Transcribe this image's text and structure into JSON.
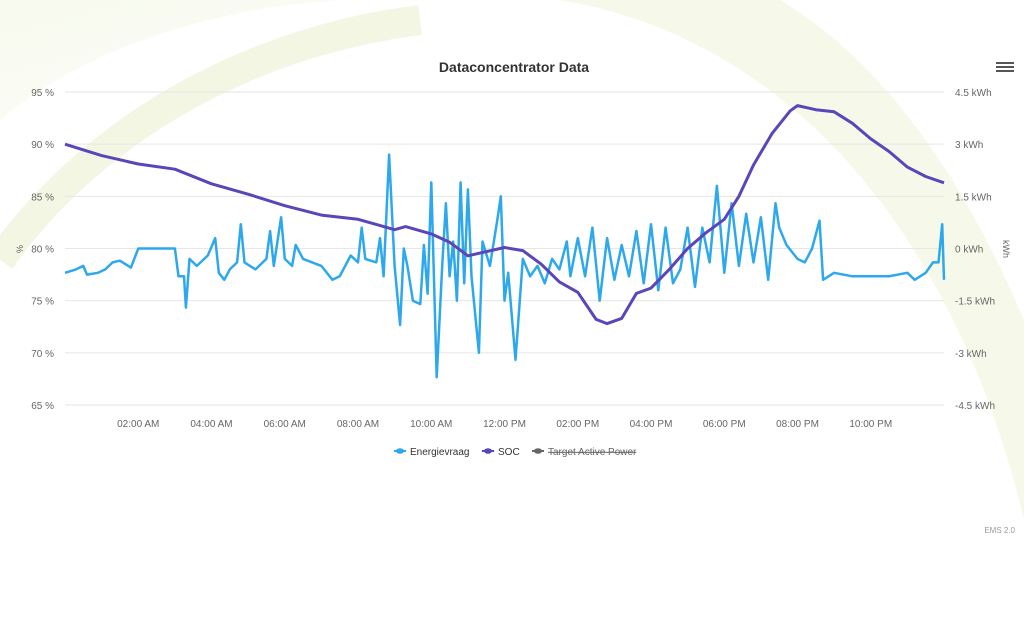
{
  "chart_data": {
    "type": "line",
    "title": "Dataconcentrator Data",
    "xlabel": "",
    "ylabel_left": "%",
    "ylabel_right": "kWh",
    "xlim_hours": [
      0,
      24
    ],
    "ylim_left": [
      65,
      95
    ],
    "ylim_right": [
      -4.5,
      4.5
    ],
    "x_ticks": [
      {
        "h": 2,
        "label": "02:00 AM"
      },
      {
        "h": 4,
        "label": "04:00 AM"
      },
      {
        "h": 6,
        "label": "06:00 AM"
      },
      {
        "h": 8,
        "label": "08:00 AM"
      },
      {
        "h": 10,
        "label": "10:00 AM"
      },
      {
        "h": 12,
        "label": "12:00 PM"
      },
      {
        "h": 14,
        "label": "02:00 PM"
      },
      {
        "h": 16,
        "label": "04:00 PM"
      },
      {
        "h": 18,
        "label": "06:00 PM"
      },
      {
        "h": 20,
        "label": "08:00 PM"
      },
      {
        "h": 22,
        "label": "10:00 PM"
      }
    ],
    "y_left_ticks": [
      "65 %",
      "70 %",
      "75 %",
      "80 %",
      "85 %",
      "90 %",
      "95 %"
    ],
    "y_right_ticks": [
      "-4.5 kWh",
      "-3 kWh",
      "-1.5 kWh",
      "0 kWh",
      "1.5 kWh",
      "3 kWh",
      "4.5 kWh"
    ],
    "grid": true,
    "legend_position": "bottom-center",
    "series": [
      {
        "name": "Energievraag",
        "axis": "right",
        "color": "#2ea8ec",
        "hidden": false,
        "x": [
          0,
          0.3,
          0.5,
          0.6,
          0.9,
          1.1,
          1.3,
          1.5,
          1.8,
          2,
          3,
          3.1,
          3.25,
          3.3,
          3.4,
          3.6,
          3.9,
          4.1,
          4.2,
          4.35,
          4.5,
          4.7,
          4.8,
          4.9,
          5.2,
          5.5,
          5.6,
          5.7,
          5.9,
          6,
          6.2,
          6.3,
          6.5,
          7,
          7.3,
          7.5,
          7.8,
          8,
          8.1,
          8.2,
          8.5,
          8.6,
          8.7,
          8.85,
          9,
          9.15,
          9.25,
          9.35,
          9.5,
          9.7,
          9.8,
          9.9,
          10,
          10.15,
          10.3,
          10.4,
          10.5,
          10.6,
          10.7,
          10.8,
          10.9,
          11,
          11.1,
          11.3,
          11.4,
          11.6,
          11.8,
          11.9,
          12,
          12.1,
          12.3,
          12.5,
          12.7,
          12.9,
          13.1,
          13.3,
          13.5,
          13.7,
          13.8,
          14,
          14.2,
          14.4,
          14.6,
          14.8,
          15,
          15.2,
          15.4,
          15.6,
          15.8,
          16,
          16.2,
          16.4,
          16.6,
          16.8,
          17,
          17.2,
          17.4,
          17.6,
          17.8,
          18,
          18.2,
          18.4,
          18.6,
          18.8,
          19,
          19.2,
          19.4,
          19.5,
          19.7,
          20,
          20.2,
          20.4,
          20.6,
          20.7,
          21,
          21.5,
          22,
          22.5,
          23,
          23.2,
          23.5,
          23.7,
          23.85,
          23.95,
          24
        ],
        "values": [
          -0.7,
          -0.6,
          -0.5,
          -0.75,
          -0.7,
          -0.6,
          -0.4,
          -0.35,
          -0.55,
          0,
          0,
          -0.8,
          -0.8,
          -1.7,
          -0.3,
          -0.5,
          -0.2,
          0.3,
          -0.7,
          -0.9,
          -0.6,
          -0.4,
          0.7,
          -0.4,
          -0.6,
          -0.3,
          0.5,
          -0.5,
          0.9,
          -0.3,
          -0.5,
          0.1,
          -0.3,
          -0.5,
          -0.9,
          -0.8,
          -0.2,
          -0.4,
          0.6,
          -0.3,
          -0.4,
          0.3,
          -0.8,
          2.7,
          -0.5,
          -2.2,
          0,
          -0.5,
          -1.5,
          -1.6,
          0.1,
          -1.3,
          1.9,
          -3.7,
          -0.5,
          1.3,
          -0.8,
          0.2,
          -1.5,
          1.9,
          -1.0,
          1.7,
          -0.8,
          -3.0,
          0.2,
          -0.5,
          0.8,
          1.5,
          -1.5,
          -0.7,
          -3.2,
          -0.3,
          -0.8,
          -0.5,
          -1.0,
          -0.3,
          -0.6,
          0.2,
          -0.8,
          0.3,
          -0.8,
          0.6,
          -1.5,
          0.3,
          -0.9,
          0.1,
          -0.8,
          0.5,
          -1.0,
          0.7,
          -1.2,
          0.6,
          -1.0,
          -0.6,
          0.6,
          -1.1,
          0.6,
          -0.4,
          1.8,
          -0.7,
          1.3,
          -0.5,
          1.0,
          -0.4,
          0.9,
          -0.9,
          1.3,
          0.6,
          0.1,
          -0.3,
          -0.4,
          0,
          0.8,
          -0.9,
          -0.7,
          -0.8,
          -0.8,
          -0.8,
          -0.7,
          -0.9,
          -0.7,
          -0.4,
          -0.4,
          0.7,
          -0.9
        ]
      },
      {
        "name": "SOC",
        "axis": "left",
        "color": "#5b45b8",
        "hidden": false,
        "x": [
          0,
          1,
          2,
          3,
          4,
          5,
          6,
          7,
          8,
          9,
          9.3,
          10,
          10.5,
          11,
          12,
          12.5,
          13,
          13.5,
          14,
          14.5,
          14.8,
          15.2,
          15.6,
          16,
          16.5,
          17,
          17.5,
          18,
          18.4,
          18.8,
          19.3,
          19.8,
          20,
          20.5,
          21,
          21.5,
          22,
          22.5,
          23,
          23.5,
          24
        ],
        "values": [
          90,
          88.9,
          88.1,
          87.6,
          86.2,
          85.2,
          84.1,
          83.2,
          82.8,
          81.8,
          82.1,
          81.4,
          80.6,
          79.3,
          80.1,
          79.8,
          78.5,
          76.8,
          75.8,
          73.2,
          72.8,
          73.3,
          75.7,
          76.2,
          78,
          80,
          81.5,
          82.8,
          85,
          88,
          91,
          93.2,
          93.7,
          93.3,
          93.1,
          92,
          90.5,
          89.3,
          87.8,
          86.9,
          86.3
        ]
      },
      {
        "name": "Target Active Power",
        "axis": "right",
        "color": "#666666",
        "hidden": true,
        "x": [],
        "values": []
      }
    ]
  },
  "footer": {
    "version": "EMS 2.0"
  }
}
